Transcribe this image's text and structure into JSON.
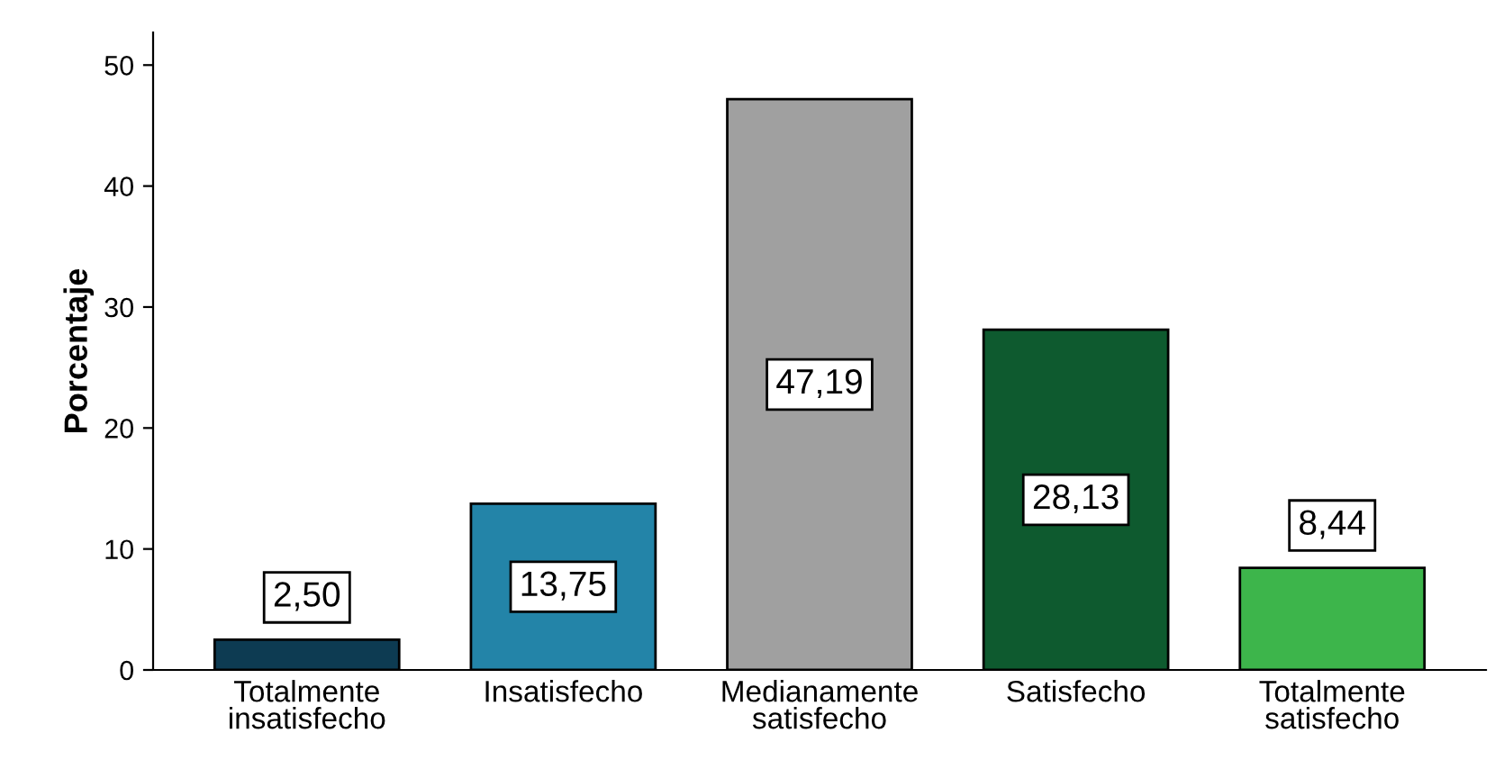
{
  "chart_data": {
    "type": "bar",
    "ylabel": "Porcentaje",
    "categories": [
      "Totalmente\ninsatisfecho",
      "Insatisfecho",
      "Medianamente\nsatisfecho",
      "Satisfecho",
      "Totalmente\nsatisfecho"
    ],
    "values": [
      2.5,
      13.75,
      47.19,
      28.13,
      8.44
    ],
    "value_labels": [
      "2,50",
      "13,75",
      "47,19",
      "28,13",
      "8,44"
    ],
    "colors": [
      "#0d3b52",
      "#2384a8",
      "#a0a0a0",
      "#0e5a2f",
      "#3db54b"
    ],
    "ylim": [
      0,
      52.7
    ],
    "yticks": [
      0,
      10,
      20,
      30,
      40,
      50
    ],
    "grid": false,
    "legend": false
  }
}
